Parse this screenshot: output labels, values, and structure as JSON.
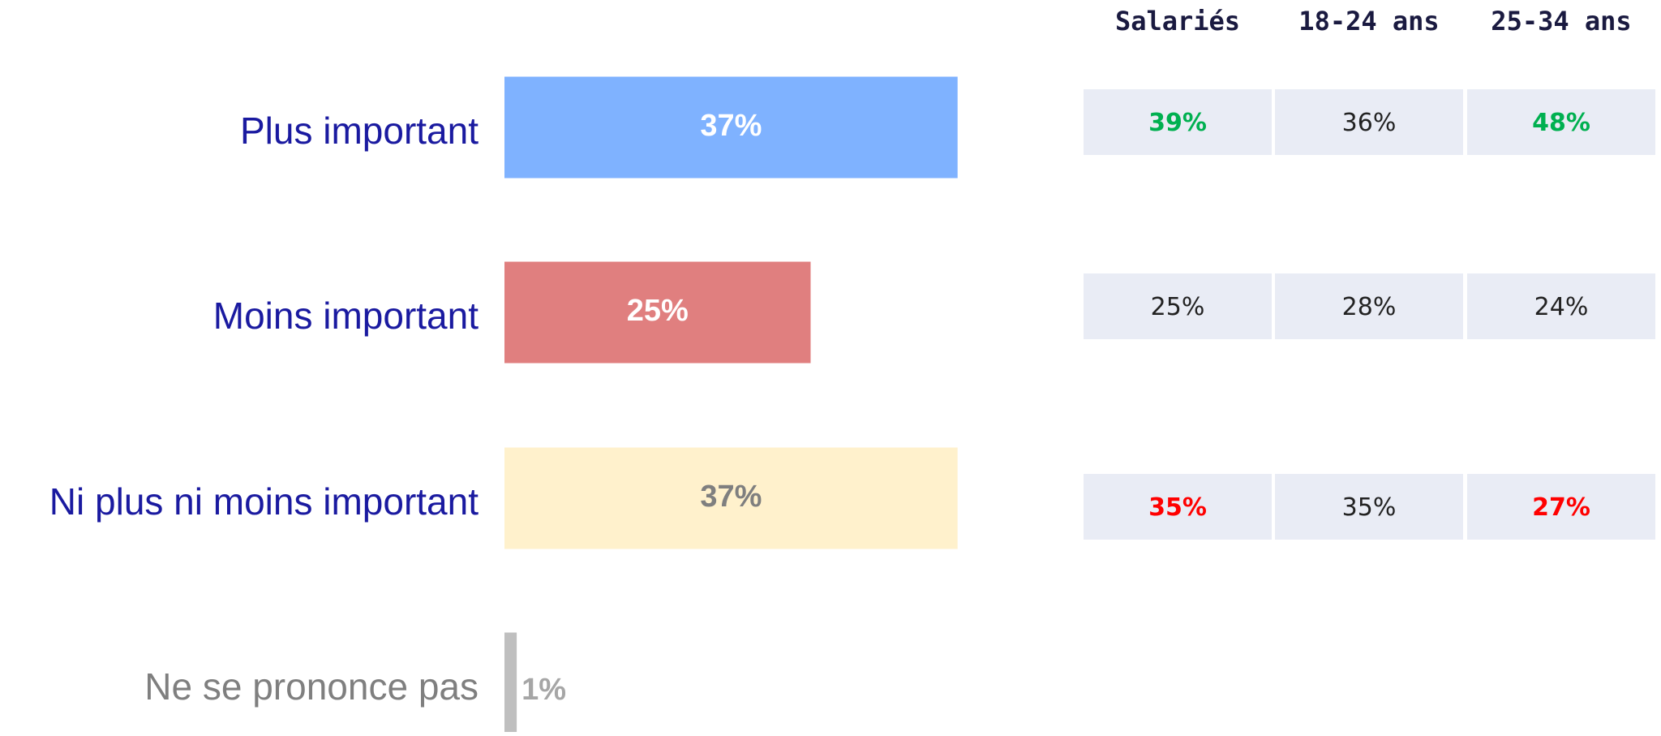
{
  "chart_data": {
    "type": "bar",
    "categories": [
      "Plus important",
      "Moins important",
      "Ni plus ni moins important",
      "Ne se prononce pas"
    ],
    "values": [
      37,
      25,
      37,
      1
    ],
    "value_labels": [
      "37%",
      "25%",
      "37%",
      "1%"
    ],
    "colors": [
      "#7fb2ff",
      "#e07f7f",
      "#fff1cc",
      "#bfbfbf"
    ],
    "label_colors": [
      "#ffffff",
      "#ffffff",
      "#7f7f7f",
      "#a6a6a6"
    ],
    "category_colors": [
      "#1a1aa0",
      "#1a1aa0",
      "#1a1aa0",
      "#7f7f7f"
    ]
  },
  "table": {
    "columns": [
      "Salariés",
      "18-24 ans",
      "25-34 ans"
    ],
    "rows": [
      [
        {
          "text": "39%",
          "color": "#00b050",
          "bold": true
        },
        {
          "text": "36%",
          "color": "#222222",
          "bold": false
        },
        {
          "text": "48%",
          "color": "#00b050",
          "bold": true
        }
      ],
      [
        {
          "text": "25%",
          "color": "#222222",
          "bold": false
        },
        {
          "text": "28%",
          "color": "#222222",
          "bold": false
        },
        {
          "text": "24%",
          "color": "#222222",
          "bold": false
        }
      ],
      [
        {
          "text": "35%",
          "color": "#ff0000",
          "bold": true
        },
        {
          "text": "35%",
          "color": "#222222",
          "bold": false
        },
        {
          "text": "27%",
          "color": "#ff0000",
          "bold": true
        }
      ]
    ]
  }
}
